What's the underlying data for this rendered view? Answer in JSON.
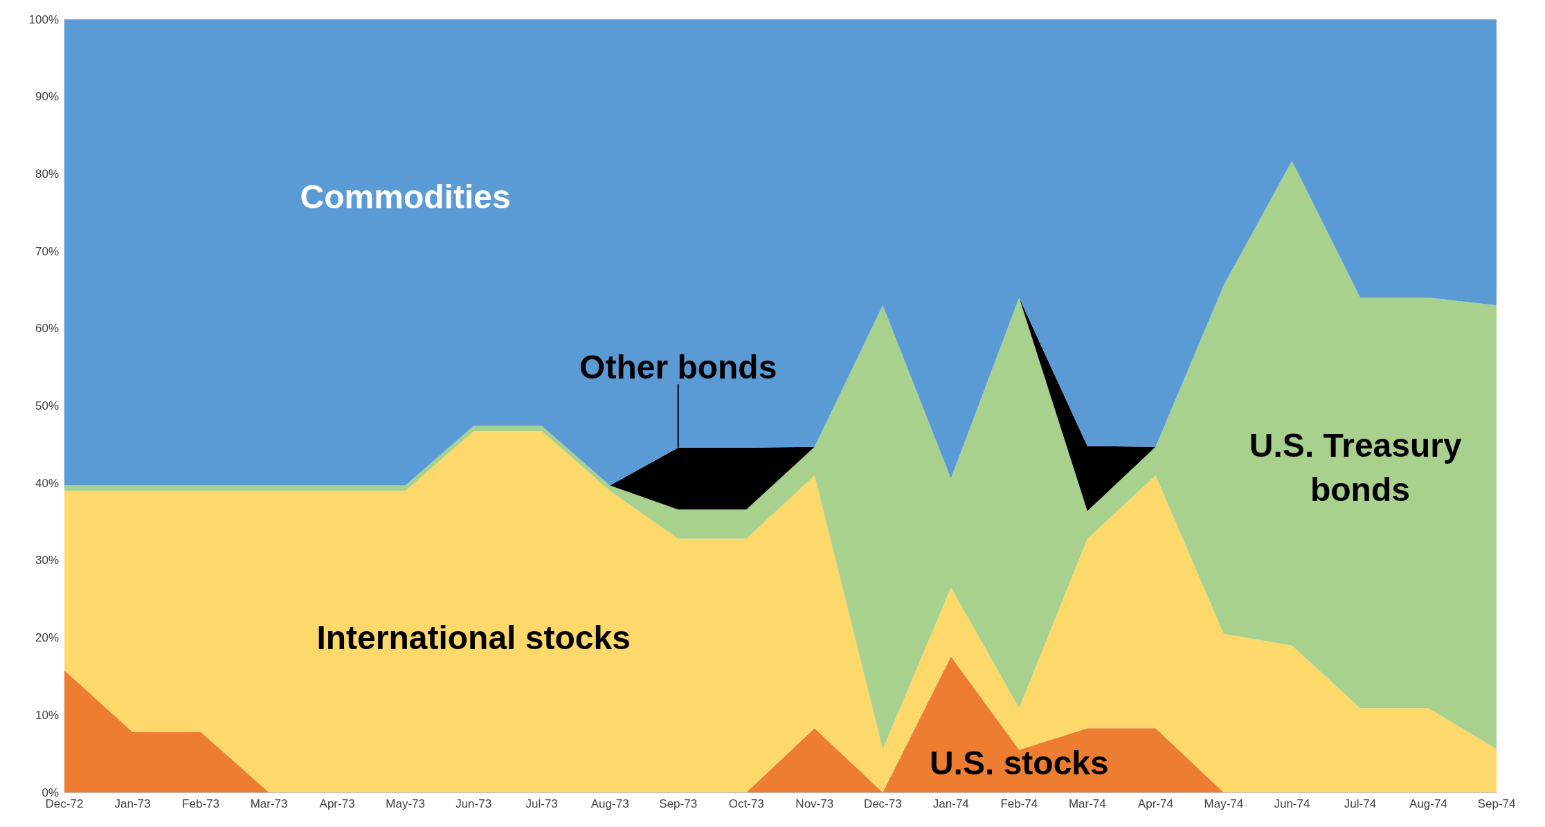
{
  "chart_data": {
    "type": "area",
    "stacked": true,
    "categories": [
      "Dec-72",
      "Jan-73",
      "Feb-73",
      "Mar-73",
      "Apr-73",
      "May-73",
      "Jun-73",
      "Jul-73",
      "Aug-73",
      "Sep-73",
      "Oct-73",
      "Nov-73",
      "Dec-73",
      "Jan-74",
      "Feb-74",
      "Mar-74",
      "Apr-74",
      "May-74",
      "Jun-74",
      "Jul-74",
      "Aug-74",
      "Sep-74"
    ],
    "series": [
      {
        "name": "U.S. stocks",
        "color": "#ed7d31",
        "values": [
          15.8,
          7.8,
          7.8,
          0,
          0,
          0,
          0,
          0,
          0,
          0,
          0,
          8.3,
          0,
          17.6,
          5.5,
          8.3,
          8.3,
          0,
          0,
          0,
          0,
          0
        ]
      },
      {
        "name": "International stocks",
        "color": "#fdd86b",
        "values": [
          23.2,
          31.2,
          31.2,
          39,
          39,
          39,
          46.7,
          46.7,
          39,
          32.8,
          32.8,
          32.7,
          5.6,
          8.9,
          5.4,
          24.5,
          32.7,
          20.5,
          19,
          10.9,
          10.9,
          5.6
        ]
      },
      {
        "name": "U.S. Treasury bonds",
        "color": "#a9d18e",
        "values": [
          0.7,
          0.7,
          0.7,
          0.7,
          0.7,
          0.7,
          0.7,
          0.7,
          0.7,
          3.8,
          3.8,
          3.7,
          57.4,
          14.1,
          53.1,
          3.6,
          3.7,
          45.1,
          62.7,
          53.1,
          53.1,
          57.4
        ]
      },
      {
        "name": "Other bonds",
        "color": "#000000",
        "values": [
          0,
          0,
          0,
          0,
          0,
          0,
          0,
          0,
          0,
          8,
          8,
          0,
          0,
          0,
          0,
          8.4,
          0,
          0,
          0,
          0,
          0,
          0
        ]
      },
      {
        "name": "Commodities",
        "color": "#5b9bd5",
        "values": [
          60.3,
          60.3,
          60.3,
          60.3,
          60.3,
          60.3,
          52.6,
          52.6,
          60.3,
          55.4,
          55.4,
          55.3,
          37,
          59.4,
          36,
          55.2,
          55.3,
          34.4,
          18.3,
          36,
          36,
          37
        ]
      }
    ],
    "ylim": [
      0,
      100
    ],
    "yticks": [
      {
        "value": 0,
        "label": "0%"
      },
      {
        "value": 10,
        "label": "10%"
      },
      {
        "value": 20,
        "label": "20%"
      },
      {
        "value": 30,
        "label": "30%"
      },
      {
        "value": 40,
        "label": "40%"
      },
      {
        "value": 50,
        "label": "50%"
      },
      {
        "value": 60,
        "label": "60%"
      },
      {
        "value": 70,
        "label": "70%"
      },
      {
        "value": 80,
        "label": "80%"
      },
      {
        "value": 90,
        "label": "90%"
      },
      {
        "value": 100,
        "label": "100%"
      }
    ],
    "grid": false,
    "legend": false
  }
}
